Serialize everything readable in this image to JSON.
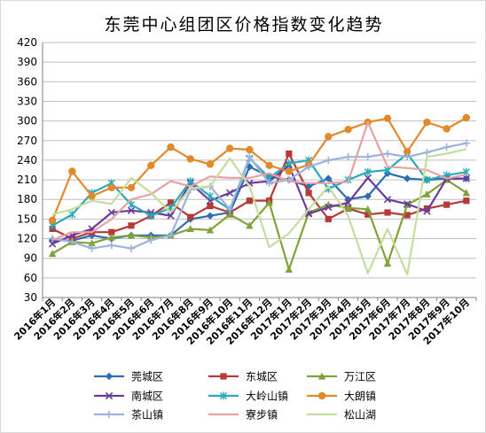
{
  "chart_data": {
    "type": "line",
    "title": "东莞中心组团区价格指数变化趋势",
    "xlabel": "",
    "ylabel": "",
    "ylim": [
      30,
      420
    ],
    "yticks": [
      30,
      60,
      90,
      120,
      150,
      180,
      210,
      240,
      270,
      300,
      330,
      360,
      390,
      420
    ],
    "grid": true,
    "legend_position": "bottom",
    "categories": [
      "2016年1月",
      "2016年2月",
      "2016年3月",
      "2016年4月",
      "2016年5月",
      "2016年6月",
      "2016年7月",
      "2016年8月",
      "2016年9月",
      "2016年10月",
      "2016年11月",
      "2016年12月",
      "2017年1月",
      "2017年2月",
      "2017年3月",
      "2017年4月",
      "2017年5月",
      "2017年6月",
      "2017年7月",
      "2017年8月",
      "2017年9月",
      "2017年10月"
    ],
    "series": [
      {
        "name": "莞城区",
        "color": "#2e6db4",
        "marker": "diamond",
        "values": [
          118,
          117,
          125,
          120,
          125,
          125,
          125,
          150,
          155,
          160,
          230,
          215,
          210,
          200,
          212,
          180,
          185,
          220,
          212,
          210,
          212,
          212
        ]
      },
      {
        "name": "东城区",
        "color": "#b53a3a",
        "marker": "square",
        "values": [
          135,
          120,
          130,
          130,
          140,
          155,
          175,
          153,
          170,
          160,
          178,
          178,
          250,
          190,
          150,
          166,
          157,
          160,
          156,
          166,
          172,
          178
        ]
      },
      {
        "name": "万江区",
        "color": "#7fa33a",
        "marker": "triangle",
        "values": [
          97,
          115,
          113,
          122,
          125,
          122,
          125,
          135,
          133,
          157,
          140,
          175,
          73,
          160,
          172,
          167,
          165,
          82,
          172,
          188,
          210,
          190
        ]
      },
      {
        "name": "南城区",
        "color": "#6a3d9a",
        "marker": "x",
        "values": [
          112,
          125,
          135,
          160,
          163,
          160,
          155,
          205,
          178,
          190,
          205,
          208,
          232,
          158,
          168,
          175,
          213,
          180,
          173,
          162,
          212,
          212
        ]
      },
      {
        "name": "大岭山镇",
        "color": "#2aa9b9",
        "marker": "asterisk",
        "values": [
          140,
          157,
          190,
          205,
          172,
          155,
          167,
          208,
          185,
          165,
          243,
          213,
          235,
          240,
          196,
          210,
          222,
          225,
          250,
          210,
          217,
          222
        ]
      },
      {
        "name": "大朗镇",
        "color": "#e08a2c",
        "marker": "circle",
        "values": [
          148,
          223,
          185,
          198,
          198,
          232,
          260,
          242,
          234,
          258,
          256,
          232,
          223,
          233,
          276,
          287,
          298,
          304,
          253,
          298,
          288,
          305
        ]
      },
      {
        "name": "茶山镇",
        "color": "#9db3d9",
        "marker": "plus",
        "values": [
          120,
          115,
          105,
          110,
          105,
          118,
          125,
          195,
          200,
          165,
          245,
          205,
          210,
          230,
          240,
          245,
          245,
          250,
          245,
          252,
          260,
          266
        ]
      },
      {
        "name": "寮步镇",
        "color": "#e7a3a3",
        "marker": "dash",
        "values": [
          118,
          130,
          130,
          150,
          180,
          188,
          208,
          200,
          215,
          213,
          213,
          220,
          208,
          205,
          205,
          207,
          298,
          230,
          228,
          225,
          212,
          218
        ]
      },
      {
        "name": "松山湖",
        "color": "#c5dd9f",
        "marker": "dash",
        "values": [
          157,
          165,
          178,
          173,
          213,
          190,
          160,
          197,
          200,
          243,
          200,
          107,
          128,
          165,
          200,
          155,
          67,
          135,
          65,
          245,
          250,
          257
        ]
      }
    ]
  }
}
